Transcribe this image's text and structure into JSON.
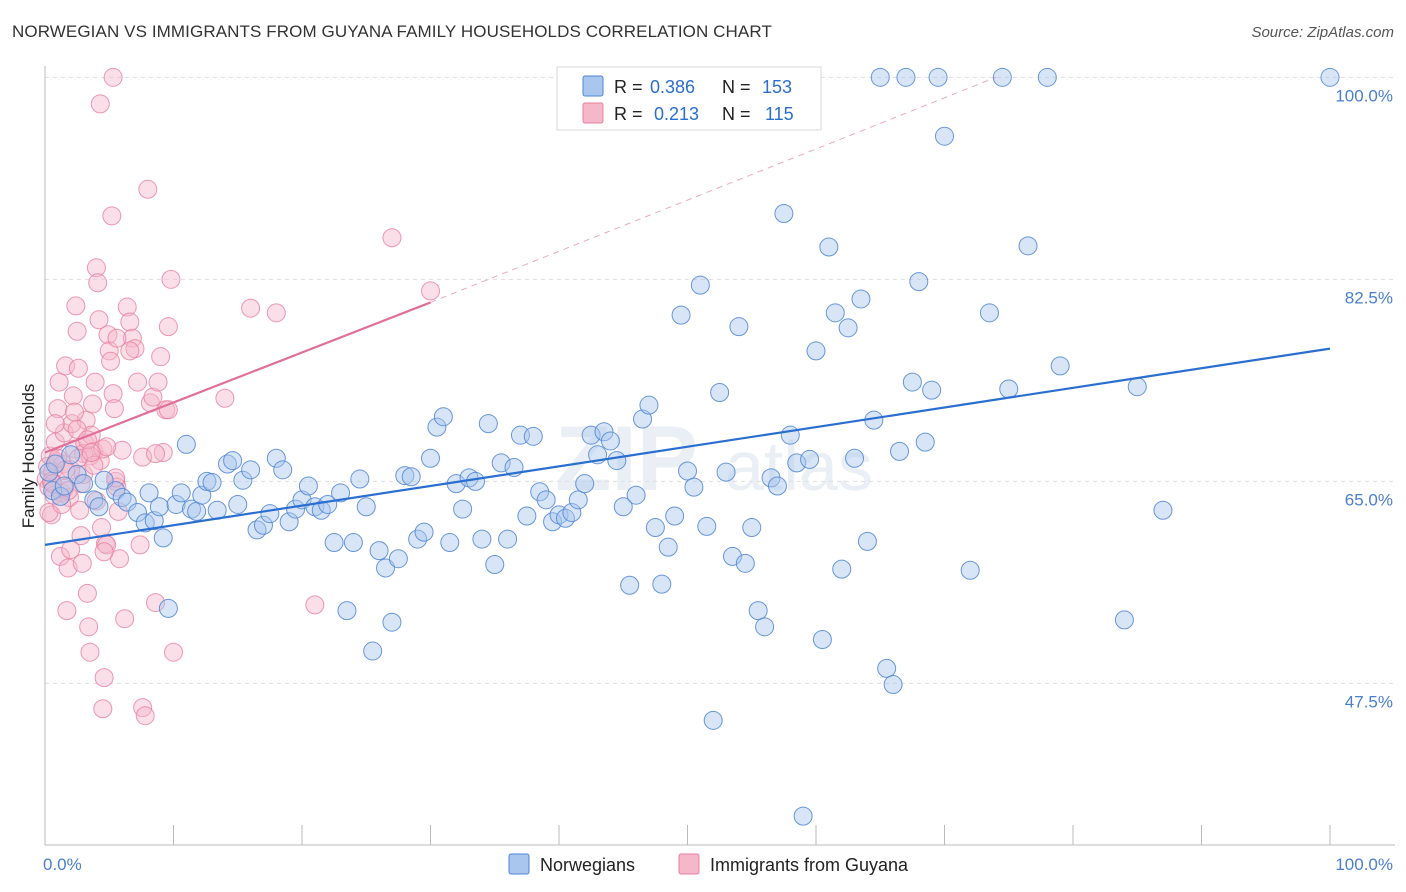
{
  "title": "NORWEGIAN VS IMMIGRANTS FROM GUYANA FAMILY HOUSEHOLDS CORRELATION CHART",
  "source": "Source: ZipAtlas.com",
  "watermark": {
    "zip": "ZIP",
    "atlas": "atlas"
  },
  "colors": {
    "blue_fill": "#a9c6ee",
    "blue_stroke": "#4f86d6",
    "blue_line": "#2a6fd0",
    "pink_fill": "#f5b8cb",
    "pink_stroke": "#e8809f",
    "pink_line": "#e0709a",
    "tick_text": "#4a7fd0",
    "grid": "#dddddd"
  },
  "legend": {
    "r_label": "R =",
    "n_label": "N =",
    "rows": [
      {
        "r": "0.386",
        "n": "153"
      },
      {
        "r": "0.213",
        "n": "115"
      }
    ]
  },
  "chart_data": {
    "type": "scatter",
    "title": "NORWEGIAN VS IMMIGRANTS FROM GUYANA FAMILY HOUSEHOLDS CORRELATION CHART",
    "xlabel": "",
    "ylabel": "Family Households",
    "xlim": [
      0,
      100
    ],
    "ylim": [
      33.5,
      101.5
    ],
    "y_ticks": [
      {
        "value": 100.0,
        "label": "100.0%"
      },
      {
        "value": 82.5,
        "label": "82.5%"
      },
      {
        "value": 65.0,
        "label": "65.0%"
      },
      {
        "value": 47.5,
        "label": "47.5%"
      }
    ],
    "x_ticks": [
      {
        "value": 0,
        "label": "0.0%"
      },
      {
        "value": 100,
        "label": "100.0%"
      }
    ],
    "grid": true,
    "legend_position": "top-center",
    "series": [
      {
        "name": "Norwegians",
        "color": "#4f86d6",
        "trend": {
          "x0": 0,
          "y0": 59.5,
          "x1": 100,
          "y1": 76.5
        },
        "points": [
          [
            0.3,
            65.8
          ],
          [
            0.6,
            64.2
          ],
          [
            0.8,
            66.5
          ],
          [
            1.2,
            63.7
          ],
          [
            1.5,
            64.6
          ],
          [
            2.0,
            67.3
          ],
          [
            2.5,
            65.6
          ],
          [
            3.0,
            64.8
          ],
          [
            3.8,
            63.4
          ],
          [
            4.2,
            62.8
          ],
          [
            4.6,
            65.1
          ],
          [
            5.5,
            64.2
          ],
          [
            6.0,
            63.6
          ],
          [
            6.4,
            63.2
          ],
          [
            7.2,
            62.3
          ],
          [
            7.8,
            61.4
          ],
          [
            8.1,
            64.0
          ],
          [
            8.5,
            61.6
          ],
          [
            8.9,
            62.8
          ],
          [
            9.2,
            60.1
          ],
          [
            9.6,
            54.0
          ],
          [
            10.2,
            63.0
          ],
          [
            10.6,
            64.0
          ],
          [
            11.0,
            68.2
          ],
          [
            11.4,
            62.6
          ],
          [
            11.8,
            62.4
          ],
          [
            12.2,
            63.8
          ],
          [
            12.6,
            65.0
          ],
          [
            13.0,
            64.9
          ],
          [
            13.4,
            62.5
          ],
          [
            14.2,
            66.5
          ],
          [
            14.6,
            66.8
          ],
          [
            15.0,
            63.0
          ],
          [
            15.4,
            65.1
          ],
          [
            16.0,
            66.0
          ],
          [
            16.5,
            60.8
          ],
          [
            17.0,
            61.2
          ],
          [
            17.5,
            62.2
          ],
          [
            18.0,
            67.0
          ],
          [
            18.5,
            66.0
          ],
          [
            19.0,
            61.5
          ],
          [
            19.5,
            62.6
          ],
          [
            20.0,
            63.4
          ],
          [
            20.5,
            64.6
          ],
          [
            21.0,
            62.8
          ],
          [
            21.5,
            62.5
          ],
          [
            22.0,
            63.0
          ],
          [
            22.5,
            59.7
          ],
          [
            23.0,
            64.0
          ],
          [
            23.5,
            53.8
          ],
          [
            24.0,
            59.7
          ],
          [
            24.5,
            65.2
          ],
          [
            25.0,
            62.8
          ],
          [
            25.5,
            50.3
          ],
          [
            26.0,
            59.0
          ],
          [
            26.5,
            57.5
          ],
          [
            27.0,
            52.8
          ],
          [
            27.5,
            58.3
          ],
          [
            28.0,
            65.5
          ],
          [
            28.5,
            65.4
          ],
          [
            29.0,
            60.0
          ],
          [
            29.5,
            60.6
          ],
          [
            30.0,
            67.0
          ],
          [
            30.5,
            69.7
          ],
          [
            31.0,
            70.6
          ],
          [
            31.5,
            59.7
          ],
          [
            32.0,
            64.8
          ],
          [
            32.5,
            62.6
          ],
          [
            33.0,
            65.3
          ],
          [
            33.5,
            65.0
          ],
          [
            34.0,
            60.0
          ],
          [
            34.5,
            70.0
          ],
          [
            35.0,
            57.8
          ],
          [
            35.5,
            66.6
          ],
          [
            36.0,
            60.0
          ],
          [
            36.5,
            66.2
          ],
          [
            37.0,
            69.0
          ],
          [
            37.5,
            62.0
          ],
          [
            38.0,
            68.9
          ],
          [
            38.5,
            64.1
          ],
          [
            39.0,
            63.4
          ],
          [
            39.5,
            61.5
          ],
          [
            40.0,
            62.1
          ],
          [
            40.5,
            61.8
          ],
          [
            41.0,
            62.3
          ],
          [
            41.5,
            63.4
          ],
          [
            42.0,
            64.8
          ],
          [
            42.5,
            69.0
          ],
          [
            43.0,
            67.3
          ],
          [
            43.5,
            69.3
          ],
          [
            44.0,
            68.5
          ],
          [
            44.5,
            66.8
          ],
          [
            45.0,
            62.8
          ],
          [
            45.5,
            56.0
          ],
          [
            46.0,
            63.8
          ],
          [
            46.5,
            70.4
          ],
          [
            47.0,
            71.6
          ],
          [
            47.5,
            61.0
          ],
          [
            48.0,
            56.1
          ],
          [
            48.5,
            59.3
          ],
          [
            49.0,
            62.0
          ],
          [
            49.5,
            79.4
          ],
          [
            50.0,
            65.9
          ],
          [
            50.5,
            64.5
          ],
          [
            51.0,
            82.0
          ],
          [
            51.5,
            61.1
          ],
          [
            52.0,
            44.3
          ],
          [
            52.5,
            72.7
          ],
          [
            53.0,
            65.8
          ],
          [
            53.5,
            58.5
          ],
          [
            54.0,
            78.4
          ],
          [
            54.5,
            57.9
          ],
          [
            55.0,
            61.0
          ],
          [
            55.5,
            53.8
          ],
          [
            56.0,
            52.4
          ],
          [
            56.5,
            65.3
          ],
          [
            57.0,
            64.6
          ],
          [
            57.5,
            88.2
          ],
          [
            58.0,
            69.0
          ],
          [
            58.5,
            66.6
          ],
          [
            59.0,
            36.0
          ],
          [
            59.5,
            66.9
          ],
          [
            60.0,
            76.3
          ],
          [
            60.5,
            51.3
          ],
          [
            61.0,
            85.3
          ],
          [
            61.5,
            79.6
          ],
          [
            62.0,
            57.4
          ],
          [
            62.5,
            78.3
          ],
          [
            63.0,
            67.0
          ],
          [
            63.5,
            80.8
          ],
          [
            64.0,
            59.8
          ],
          [
            64.5,
            70.3
          ],
          [
            65.0,
            100.0
          ],
          [
            65.5,
            48.8
          ],
          [
            66.0,
            47.4
          ],
          [
            66.5,
            67.6
          ],
          [
            67.0,
            100.0
          ],
          [
            67.5,
            73.6
          ],
          [
            68.0,
            82.3
          ],
          [
            68.5,
            68.4
          ],
          [
            69.0,
            72.9
          ],
          [
            69.5,
            100.0
          ],
          [
            70.0,
            94.9
          ],
          [
            72.0,
            57.3
          ],
          [
            73.5,
            79.6
          ],
          [
            74.5,
            100.0
          ],
          [
            75.0,
            73.0
          ],
          [
            76.5,
            85.4
          ],
          [
            78.0,
            100.0
          ],
          [
            79.0,
            75.0
          ],
          [
            84.0,
            53.0
          ],
          [
            85.0,
            73.2
          ],
          [
            87.0,
            62.5
          ],
          [
            100.0,
            100.0
          ]
        ]
      },
      {
        "name": "Immigrants from Guyana",
        "color": "#e8809f",
        "trend": {
          "x0": 0,
          "y0": 67.5,
          "x1": 30,
          "y1": 80.5
        },
        "trend_dashed_to": {
          "x": 74,
          "y": 100.0
        },
        "points": [
          [
            0.1,
            65.2
          ],
          [
            0.2,
            66.3
          ],
          [
            0.3,
            64.5
          ],
          [
            0.4,
            67.2
          ],
          [
            0.5,
            62.1
          ],
          [
            0.6,
            65.9
          ],
          [
            0.7,
            63.8
          ],
          [
            0.8,
            68.4
          ],
          [
            0.9,
            66.7
          ],
          [
            1.0,
            71.3
          ],
          [
            1.1,
            73.6
          ],
          [
            1.2,
            58.5
          ],
          [
            1.3,
            64.0
          ],
          [
            1.4,
            66.5
          ],
          [
            1.5,
            69.2
          ],
          [
            1.6,
            75.0
          ],
          [
            1.7,
            53.8
          ],
          [
            1.8,
            57.5
          ],
          [
            1.9,
            63.6
          ],
          [
            2.0,
            59.1
          ],
          [
            2.1,
            70.0
          ],
          [
            2.2,
            72.4
          ],
          [
            2.3,
            67.8
          ],
          [
            2.4,
            80.2
          ],
          [
            2.5,
            78.0
          ],
          [
            2.6,
            74.8
          ],
          [
            2.7,
            62.5
          ],
          [
            2.8,
            64.8
          ],
          [
            2.9,
            57.9
          ],
          [
            3.0,
            65.6
          ],
          [
            3.1,
            68.3
          ],
          [
            3.2,
            70.3
          ],
          [
            3.3,
            55.3
          ],
          [
            3.4,
            52.4
          ],
          [
            3.5,
            50.2
          ],
          [
            3.6,
            69.0
          ],
          [
            3.7,
            71.7
          ],
          [
            3.8,
            67.6
          ],
          [
            3.9,
            73.6
          ],
          [
            4.0,
            83.5
          ],
          [
            4.1,
            82.2
          ],
          [
            4.2,
            79.0
          ],
          [
            4.3,
            66.8
          ],
          [
            4.4,
            61.0
          ],
          [
            4.5,
            45.3
          ],
          [
            4.6,
            48.0
          ],
          [
            4.7,
            59.6
          ],
          [
            4.8,
            59.5
          ],
          [
            4.9,
            77.7
          ],
          [
            5.0,
            76.3
          ],
          [
            5.1,
            75.4
          ],
          [
            5.2,
            88.0
          ],
          [
            5.3,
            72.6
          ],
          [
            5.4,
            71.3
          ],
          [
            5.5,
            65.0
          ],
          [
            5.6,
            64.5
          ],
          [
            5.7,
            62.4
          ],
          [
            5.8,
            58.3
          ],
          [
            6.0,
            67.7
          ],
          [
            6.2,
            53.1
          ],
          [
            6.4,
            80.1
          ],
          [
            6.6,
            78.8
          ],
          [
            6.8,
            77.4
          ],
          [
            7.0,
            76.5
          ],
          [
            7.2,
            73.6
          ],
          [
            7.4,
            59.5
          ],
          [
            7.6,
            45.4
          ],
          [
            7.8,
            44.7
          ],
          [
            8.0,
            90.3
          ],
          [
            8.2,
            71.8
          ],
          [
            8.4,
            72.3
          ],
          [
            8.6,
            54.5
          ],
          [
            8.8,
            73.6
          ],
          [
            9.0,
            75.8
          ],
          [
            9.2,
            67.5
          ],
          [
            9.4,
            71.2
          ],
          [
            9.6,
            78.4
          ],
          [
            9.8,
            82.5
          ],
          [
            10.0,
            50.2
          ],
          [
            14.0,
            72.2
          ],
          [
            16.0,
            80.0
          ],
          [
            18.0,
            79.6
          ],
          [
            21.0,
            54.3
          ],
          [
            27.0,
            86.1
          ],
          [
            30.0,
            81.5
          ],
          [
            1.0,
            67.0
          ],
          [
            2.0,
            66.0
          ],
          [
            3.0,
            67.4
          ],
          [
            4.0,
            63.3
          ],
          [
            0.5,
            65.0
          ],
          [
            1.5,
            64.4
          ],
          [
            2.5,
            69.5
          ],
          [
            3.5,
            67.2
          ],
          [
            4.5,
            67.8
          ],
          [
            5.5,
            65.3
          ],
          [
            0.8,
            70.0
          ],
          [
            1.8,
            64.2
          ],
          [
            2.8,
            60.3
          ],
          [
            3.8,
            66.4
          ],
          [
            4.8,
            68.0
          ],
          [
            0.3,
            62.3
          ],
          [
            1.3,
            63.0
          ],
          [
            2.3,
            71.0
          ],
          [
            3.3,
            68.6
          ],
          [
            4.3,
            97.7
          ],
          [
            5.3,
            100.0
          ],
          [
            0.6,
            64.8
          ],
          [
            1.6,
            66.0
          ],
          [
            2.6,
            67.0
          ],
          [
            3.6,
            67.5
          ],
          [
            4.6,
            58.9
          ],
          [
            5.6,
            77.4
          ],
          [
            6.6,
            76.3
          ],
          [
            7.6,
            67.1
          ],
          [
            8.6,
            67.4
          ],
          [
            9.6,
            71.2
          ]
        ]
      }
    ]
  },
  "bottom_legend": {
    "items": [
      "Norwegians",
      "Immigrants from Guyana"
    ]
  }
}
